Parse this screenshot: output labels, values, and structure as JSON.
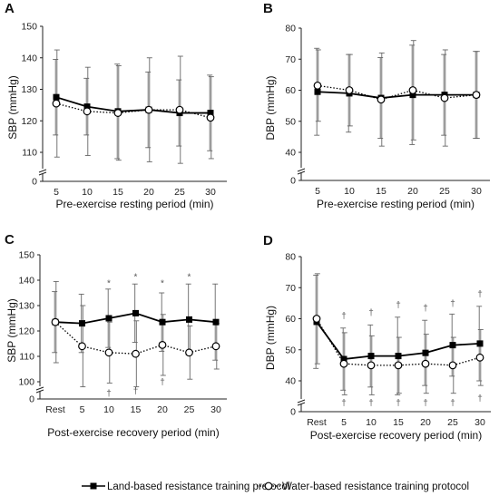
{
  "legend": {
    "land": "Land-based resistance training protocol",
    "water": "Water-based resistance training protocol"
  },
  "colors": {
    "land": "#000000",
    "water": "#000000",
    "error_bar": "#666666",
    "symbol": "#555555"
  },
  "chart_data": [
    {
      "id": "A",
      "type": "line",
      "letter": "A",
      "xlabel": "Pre-exercise resting period (min)",
      "ylabel": "SBP (mmHg)",
      "categories": [
        "5",
        "10",
        "15",
        "20",
        "25",
        "30"
      ],
      "ylim": [
        0,
        150
      ],
      "yticks": [
        "0",
        "110",
        "120",
        "130",
        "140",
        "150"
      ],
      "axis_break": true,
      "grid": false,
      "series": [
        {
          "name": "Land-based resistance training protocol",
          "marker": "square",
          "line": "solid",
          "values": [
            127.5,
            124.5,
            123,
            123.5,
            122.5,
            122.5
          ],
          "sd": [
            12,
            9,
            15,
            12,
            10.5,
            12
          ]
        },
        {
          "name": "Water-based resistance training protocol",
          "marker": "circle",
          "line": "dotted",
          "values": [
            125.5,
            123,
            122.5,
            123.5,
            123.5,
            121
          ],
          "sd": [
            17,
            14,
            15,
            16.5,
            17,
            13
          ]
        }
      ],
      "marks": []
    },
    {
      "id": "B",
      "type": "line",
      "letter": "B",
      "xlabel": "Pre-exercise resting period (min)",
      "ylabel": "DBP (mmHg)",
      "categories": [
        "5",
        "10",
        "15",
        "20",
        "25",
        "30"
      ],
      "ylim": [
        0,
        80
      ],
      "yticks": [
        "0",
        "40",
        "50",
        "60",
        "70",
        "80"
      ],
      "axis_break": true,
      "grid": false,
      "series": [
        {
          "name": "Land-based resistance training protocol",
          "marker": "square",
          "line": "solid",
          "values": [
            59.5,
            59,
            57.5,
            58.5,
            58.5,
            58.5
          ],
          "sd": [
            14,
            12.5,
            13,
            16,
            13,
            14
          ]
        },
        {
          "name": "Water-based resistance training protocol",
          "marker": "circle",
          "line": "dotted",
          "values": [
            61.5,
            60,
            57,
            60,
            57.5,
            58.5
          ],
          "sd": [
            11.5,
            11.5,
            15,
            16,
            15.5,
            14
          ]
        }
      ],
      "marks": []
    },
    {
      "id": "C",
      "type": "line",
      "letter": "C",
      "xlabel": "Post-exercise recovery period (min)",
      "ylabel": "SBP (mmHg)",
      "categories": [
        "Rest",
        "5",
        "10",
        "15",
        "20",
        "25",
        "30"
      ],
      "ylim": [
        0,
        150
      ],
      "yticks": [
        "0",
        "100",
        "110",
        "120",
        "130",
        "140",
        "150"
      ],
      "axis_break": true,
      "grid": false,
      "series": [
        {
          "name": "Land-based resistance training protocol",
          "marker": "square",
          "line": "solid",
          "values": [
            123.5,
            123,
            125,
            127,
            123.5,
            124.5,
            123.5
          ],
          "sd": [
            12,
            11.5,
            11.5,
            11.5,
            11.5,
            14,
            15
          ]
        },
        {
          "name": "Water-based resistance training protocol",
          "marker": "circle",
          "line": "dotted",
          "values": [
            123.5,
            114,
            111.5,
            111,
            114.5,
            111.5,
            114
          ],
          "sd": [
            16,
            16,
            12,
            13,
            12,
            10.5,
            9
          ]
        }
      ],
      "marks": [
        {
          "symbol": "*",
          "index": 2,
          "value": 139
        },
        {
          "symbol": "*",
          "index": 3,
          "value": 141.5
        },
        {
          "symbol": "*",
          "index": 4,
          "value": 139
        },
        {
          "symbol": "*",
          "index": 5,
          "value": 141.5
        },
        {
          "symbol": "†",
          "index": 2,
          "value": 95.5
        },
        {
          "symbol": "†",
          "index": 3,
          "value": 96.5
        },
        {
          "symbol": "†",
          "index": 4,
          "value": 100
        }
      ]
    },
    {
      "id": "D",
      "type": "line",
      "letter": "D",
      "xlabel": "Post-exercise recovery period (min)",
      "ylabel": "DBP (mmHg)",
      "categories": [
        "Rest",
        "5",
        "10",
        "15",
        "20",
        "25",
        "30"
      ],
      "ylim": [
        0,
        80
      ],
      "yticks": [
        "0",
        "40",
        "50",
        "60",
        "70",
        "80"
      ],
      "axis_break": true,
      "grid": false,
      "series": [
        {
          "name": "Land-based resistance training protocol",
          "marker": "square",
          "line": "solid",
          "values": [
            59,
            47,
            48,
            48,
            49,
            51.5,
            52
          ],
          "sd": [
            15,
            10,
            10,
            12.5,
            10.5,
            10,
            12
          ]
        },
        {
          "name": "Water-based resistance training protocol",
          "marker": "circle",
          "line": "dotted",
          "values": [
            60,
            45.5,
            45,
            45,
            45.5,
            45,
            47.5
          ],
          "sd": [
            14.5,
            10,
            9.5,
            9,
            9.5,
            9,
            9
          ]
        }
      ],
      "marks": [
        {
          "symbol": "†",
          "index": 1,
          "value": 61
        },
        {
          "symbol": "†",
          "index": 2,
          "value": 62
        },
        {
          "symbol": "†",
          "index": 3,
          "value": 64.5
        },
        {
          "symbol": "†",
          "index": 4,
          "value": 63.5
        },
        {
          "symbol": "†",
          "index": 5,
          "value": 65
        },
        {
          "symbol": "†",
          "index": 6,
          "value": 68
        },
        {
          "symbol": "†",
          "index": 1,
          "value": 33
        },
        {
          "symbol": "†",
          "index": 2,
          "value": 33
        },
        {
          "symbol": "†",
          "index": 3,
          "value": 33
        },
        {
          "symbol": "†",
          "index": 4,
          "value": 33
        },
        {
          "symbol": "†",
          "index": 5,
          "value": 33
        },
        {
          "symbol": "†",
          "index": 6,
          "value": 34.5
        }
      ]
    }
  ]
}
